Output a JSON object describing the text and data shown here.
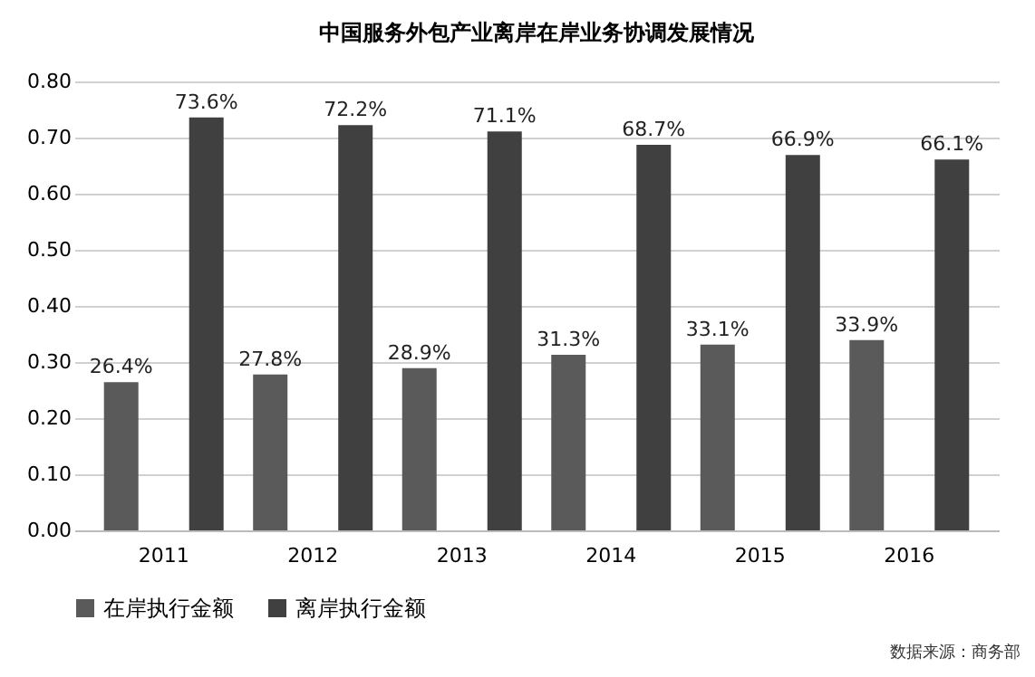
{
  "chart_data": {
    "type": "bar",
    "title": "中国服务外包产业离岸在岸业务协调发展情况",
    "categories": [
      "2011",
      "2012",
      "2013",
      "2014",
      "2015",
      "2016"
    ],
    "series": [
      {
        "name": "在岸执行金额",
        "color": "#5a5a5a",
        "values": [
          0.264,
          0.278,
          0.289,
          0.313,
          0.331,
          0.339
        ],
        "value_labels": [
          "26.4%",
          "27.8%",
          "28.9%",
          "31.3%",
          "33.1%",
          "33.9%"
        ]
      },
      {
        "name": "离岸执行金额",
        "color": "#404040",
        "values": [
          0.736,
          0.722,
          0.711,
          0.687,
          0.669,
          0.661
        ],
        "value_labels": [
          "73.6%",
          "72.2%",
          "71.1%",
          "68.7%",
          "66.9%",
          "66.1%"
        ]
      }
    ],
    "ylim": [
      0,
      0.8
    ],
    "yticks": [
      {
        "value": 0,
        "label": "0.00"
      },
      {
        "value": 0.1,
        "label": "0.10"
      },
      {
        "value": 0.2,
        "label": "0.20"
      },
      {
        "value": 0.3,
        "label": "0.30"
      },
      {
        "value": 0.4,
        "label": "0.40"
      },
      {
        "value": 0.5,
        "label": "0.50"
      },
      {
        "value": 0.6,
        "label": "0.60"
      },
      {
        "value": 0.7,
        "label": "0.70"
      },
      {
        "value": 0.8,
        "label": "0.80"
      }
    ],
    "grid": "y",
    "legend": "bottom",
    "annotations": [
      "数据来源：商务部"
    ]
  }
}
